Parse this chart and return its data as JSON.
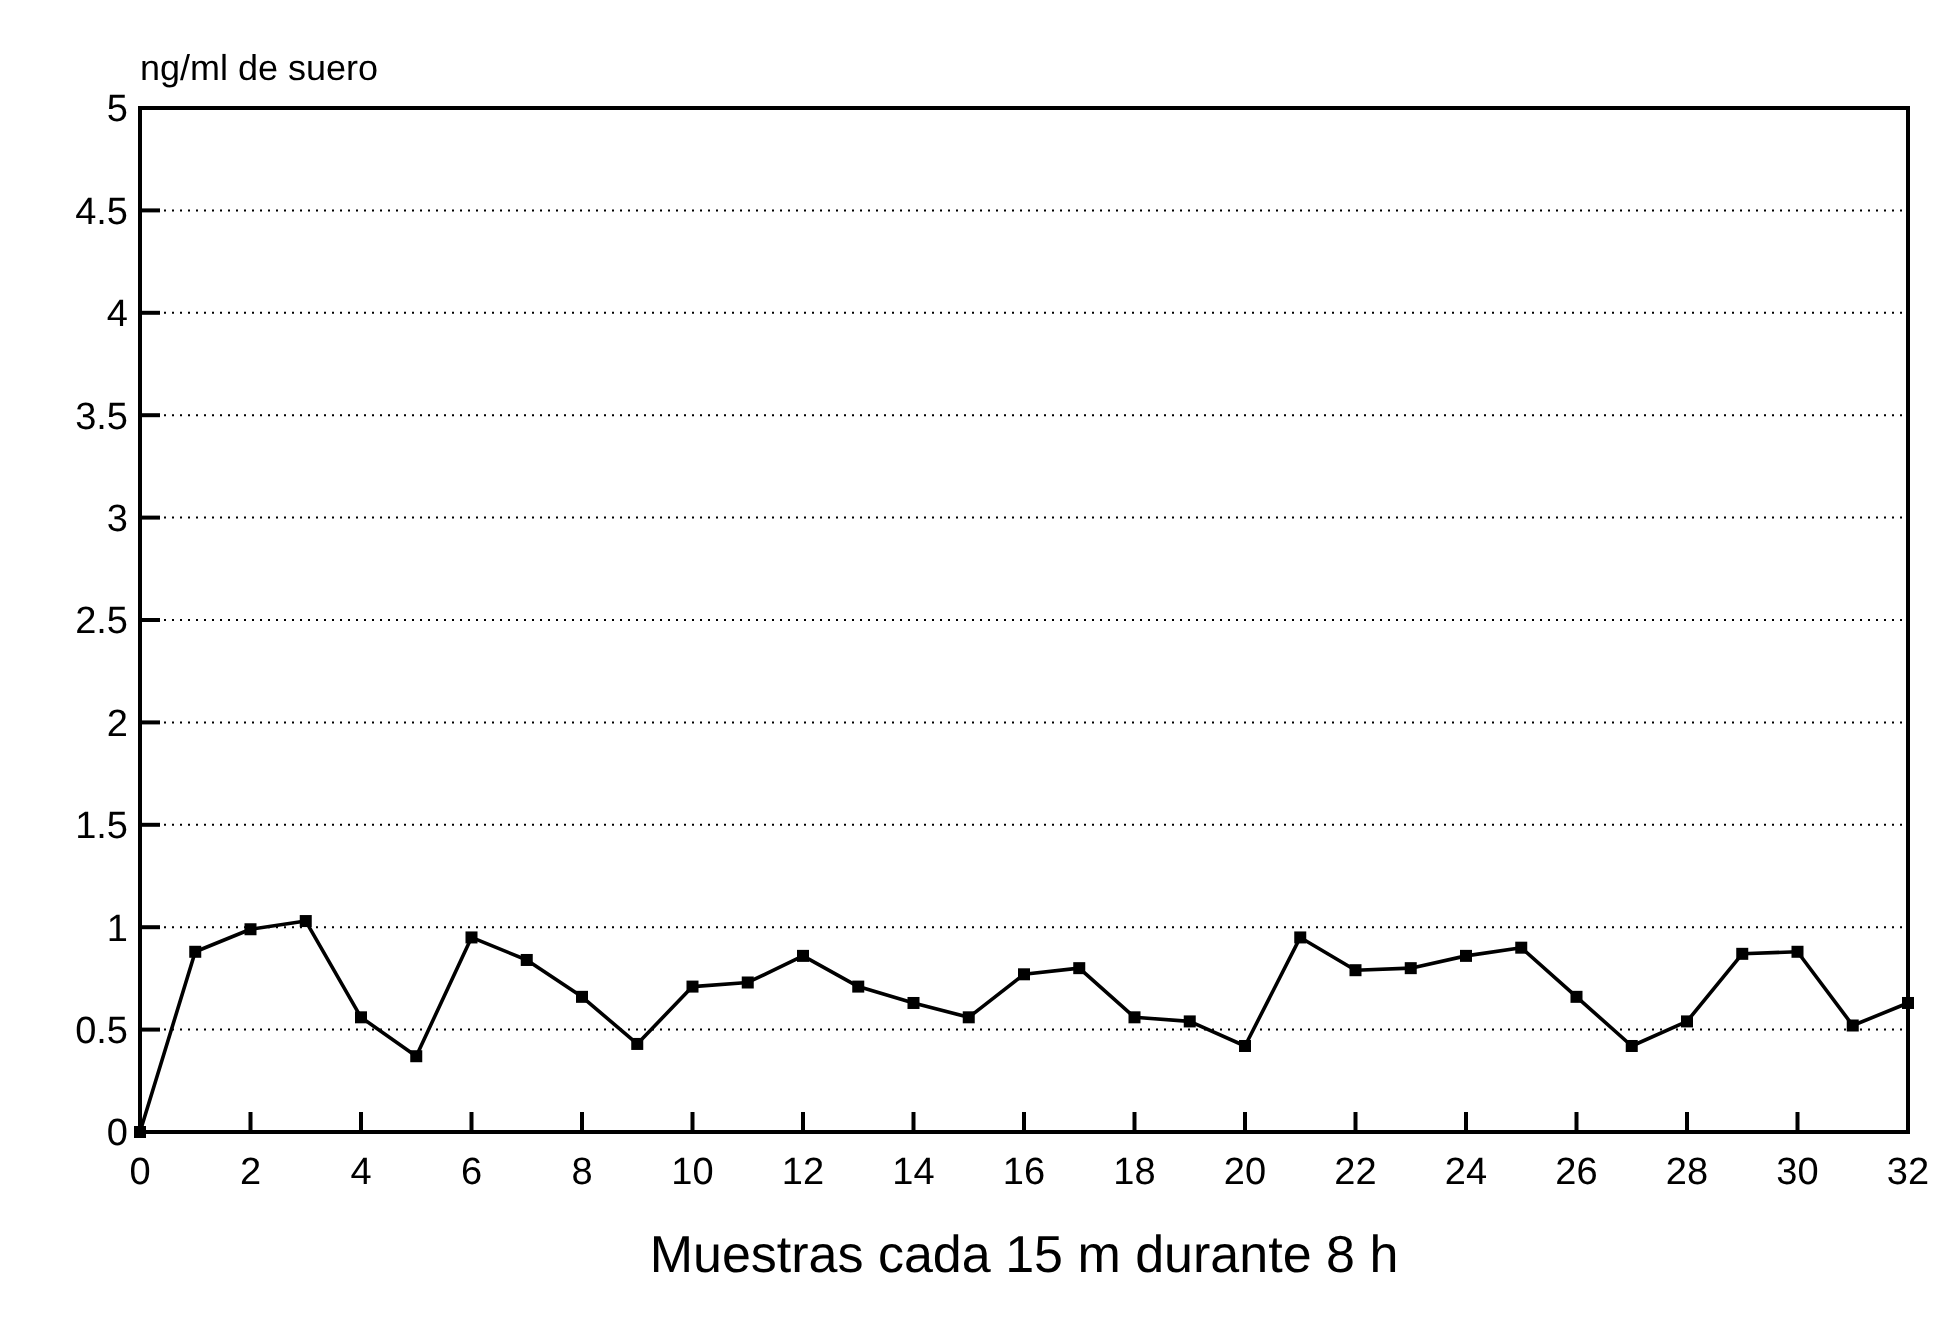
{
  "chart_data": {
    "type": "line",
    "ylabel": "ng/ml de suero",
    "xlabel": "Muestras cada 15 m durante 8 h",
    "x": [
      0,
      1,
      2,
      3,
      4,
      5,
      6,
      7,
      8,
      9,
      10,
      11,
      12,
      13,
      14,
      15,
      16,
      17,
      18,
      19,
      20,
      21,
      22,
      23,
      24,
      25,
      26,
      27,
      28,
      29,
      30,
      31,
      32
    ],
    "series": [
      {
        "color": "#000000",
        "values": [
          0,
          0.88,
          0.99,
          1.03,
          0.56,
          0.37,
          0.95,
          0.84,
          0.66,
          0.43,
          0.71,
          0.73,
          0.86,
          0.71,
          0.63,
          0.56,
          0.77,
          0.8,
          0.56,
          0.54,
          0.42,
          0.95,
          0.79,
          0.8,
          0.86,
          0.9,
          0.66,
          0.42,
          0.54,
          0.87,
          0.88,
          0.52,
          0.63
        ]
      }
    ],
    "xlim": [
      0,
      32
    ],
    "xticks": [
      0,
      2,
      4,
      6,
      8,
      10,
      12,
      14,
      16,
      18,
      20,
      22,
      24,
      26,
      28,
      30,
      32
    ],
    "ylim": [
      0,
      5
    ],
    "yticks": [
      0,
      0.5,
      1,
      1.5,
      2,
      2.5,
      3,
      3.5,
      4,
      4.5,
      5
    ],
    "grid": "y",
    "marker": "square",
    "line_style": "solid"
  }
}
